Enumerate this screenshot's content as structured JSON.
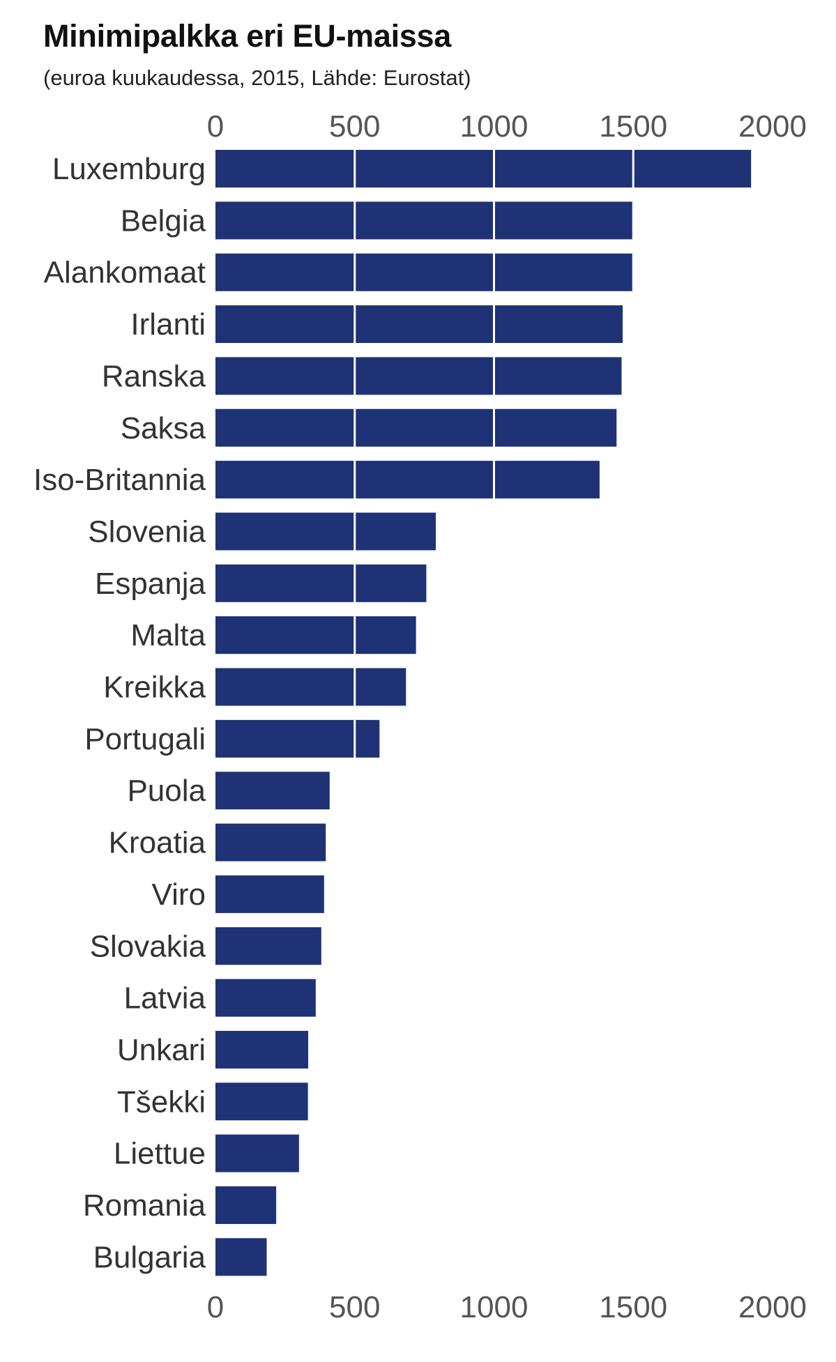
{
  "chart_data": {
    "type": "bar",
    "orientation": "horizontal",
    "title": "Minimipalkka eri EU-maissa",
    "subtitle": "(euroa kuukaudessa, 2015, Lähde: Eurostat)",
    "xlabel": "",
    "ylabel": "",
    "xlim": [
      0,
      2000
    ],
    "xticks": [
      "0",
      "500",
      "1000",
      "1500",
      "2000"
    ],
    "tick_values": [
      0,
      500,
      1000,
      1500,
      2000
    ],
    "axis_labels_position": "top and bottom",
    "grid": "white lines across bars",
    "bar_color": "#1f3276",
    "categories": [
      "Luxemburg",
      "Belgia",
      "Alankomaat",
      "Irlanti",
      "Ranska",
      "Saksa",
      "Iso-Britannia",
      "Slovenia",
      "Espanja",
      "Malta",
      "Kreikka",
      "Portugali",
      "Puola",
      "Kroatia",
      "Viro",
      "Slovakia",
      "Latvia",
      "Unkari",
      "Tšekki",
      "Liettue",
      "Romania",
      "Bulgaria"
    ],
    "values": [
      1923,
      1502,
      1502,
      1462,
      1458,
      1440,
      1379,
      791,
      757,
      720,
      684,
      589,
      410,
      396,
      390,
      380,
      360,
      333,
      332,
      300,
      218,
      184
    ]
  }
}
